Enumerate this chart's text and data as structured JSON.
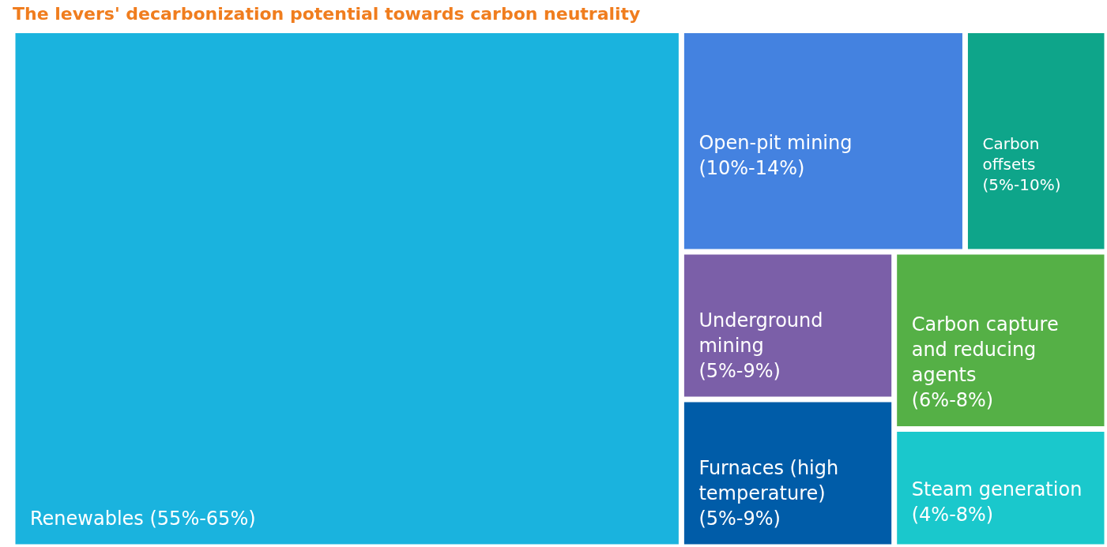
{
  "chart_data": {
    "type": "other",
    "title": "The levers' decarbonization potential towards carbon neutrality",
    "categories": [
      "Renewables",
      "Open-pit mining",
      "Carbon offsets",
      "Underground mining",
      "Furnaces (high temperature)",
      "Carbon capture and reducing agents",
      "Steam generation"
    ],
    "values": [
      55,
      10,
      5,
      5,
      5,
      6,
      4
    ],
    "value_labels": [
      "(55%-65%)",
      "(10%-14%)",
      "(5%-10%)",
      "(5%-9%)",
      "(5%-9%)",
      "(6%-8%)",
      "(4%-8%)"
    ],
    "colors": [
      "#1ab3de",
      "#4482e0",
      "#0ea58a",
      "#7b5fa8",
      "#005ca8",
      "#55b046",
      "#1ac8cc"
    ]
  }
}
